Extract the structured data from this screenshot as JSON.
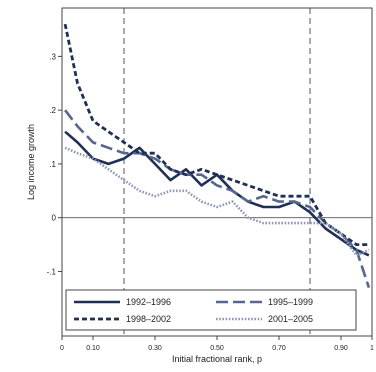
{
  "chart_data": {
    "type": "line",
    "title": "",
    "xlabel": "Initial fractional rank, p",
    "ylabel": "Log income growth",
    "xlim": [
      0,
      1.0
    ],
    "ylim": [
      -0.22,
      0.39
    ],
    "x_ticks": [
      {
        "value": 0.0,
        "label": "0"
      },
      {
        "value": 0.1,
        "label": "0.10"
      },
      {
        "value": 0.3,
        "label": "0.30"
      },
      {
        "value": 0.5,
        "label": "0.50"
      },
      {
        "value": 0.7,
        "label": "0.70"
      },
      {
        "value": 0.9,
        "label": "0.90"
      },
      {
        "value": 1.0,
        "label": "1"
      }
    ],
    "y_ticks": [
      {
        "value": -0.1,
        "label": "-.1"
      },
      {
        "value": 0.0,
        "label": "0"
      },
      {
        "value": 0.1,
        "label": ".1"
      },
      {
        "value": 0.2,
        "label": ".2"
      },
      {
        "value": 0.3,
        "label": ".3"
      }
    ],
    "reference_lines": {
      "horizontal": [
        0.0
      ],
      "vertical": [
        0.2,
        0.8
      ]
    },
    "grid": false,
    "legend_position": "bottom",
    "x": [
      0.01,
      0.05,
      0.1,
      0.15,
      0.2,
      0.25,
      0.3,
      0.35,
      0.4,
      0.45,
      0.5,
      0.55,
      0.6,
      0.65,
      0.7,
      0.75,
      0.8,
      0.85,
      0.9,
      0.95,
      0.99
    ],
    "series": [
      {
        "name": "1992–1996",
        "color": "#1f2f55",
        "dash": "solid",
        "values": [
          0.16,
          0.14,
          0.11,
          0.1,
          0.11,
          0.13,
          0.1,
          0.07,
          0.09,
          0.06,
          0.08,
          0.05,
          0.03,
          0.02,
          0.02,
          0.03,
          0.01,
          -0.02,
          -0.04,
          -0.06,
          -0.07
        ]
      },
      {
        "name": "1995–1999",
        "color": "#56668e",
        "dash": "long",
        "values": [
          0.2,
          0.17,
          0.14,
          0.13,
          0.12,
          0.12,
          0.11,
          0.09,
          0.08,
          0.08,
          0.06,
          0.05,
          0.03,
          0.04,
          0.03,
          0.03,
          0.02,
          -0.01,
          -0.03,
          -0.06,
          -0.13
        ]
      },
      {
        "name": "1998–2002",
        "color": "#1f2f55",
        "dash": "short",
        "values": [
          0.36,
          0.25,
          0.18,
          0.16,
          0.14,
          0.12,
          0.12,
          0.09,
          0.08,
          0.09,
          0.08,
          0.07,
          0.06,
          0.05,
          0.04,
          0.04,
          0.04,
          -0.01,
          -0.03,
          -0.05,
          -0.05
        ]
      },
      {
        "name": "2001–2005",
        "color": "#8c99b6",
        "dash": "dotted",
        "values": [
          0.13,
          0.12,
          0.11,
          0.09,
          0.07,
          0.05,
          0.04,
          0.05,
          0.05,
          0.03,
          0.02,
          0.03,
          0.0,
          -0.01,
          -0.01,
          -0.01,
          -0.01,
          -0.01,
          -0.03,
          -0.07,
          -0.06
        ]
      }
    ]
  }
}
